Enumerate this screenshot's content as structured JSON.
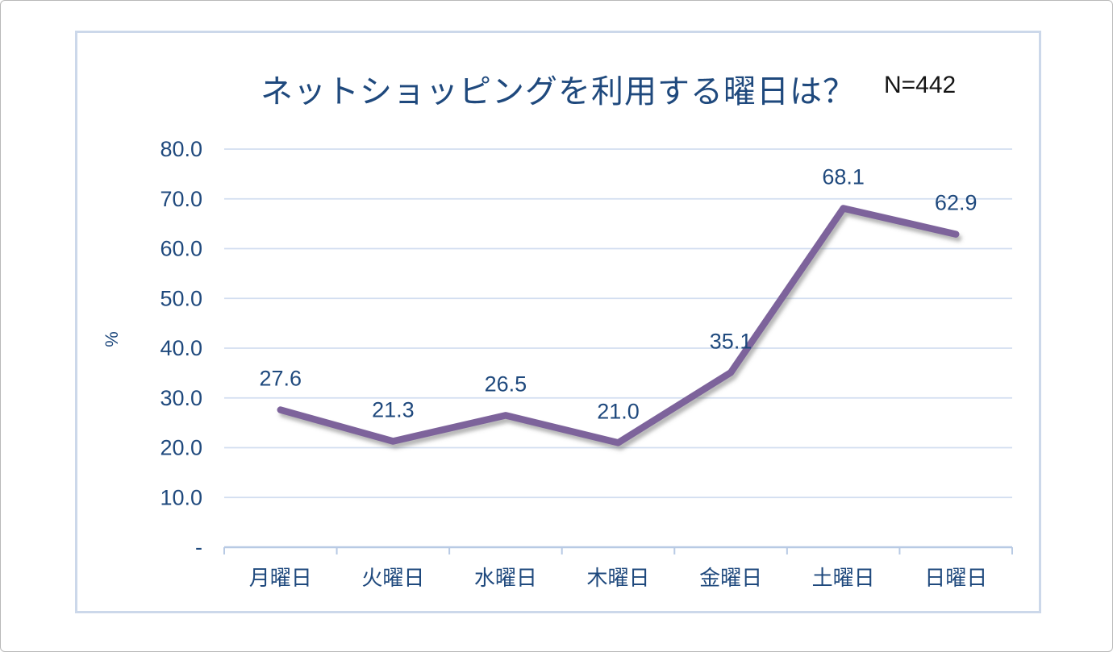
{
  "chart_data": {
    "type": "line",
    "title": "ネットショッピングを利用する曜日は？",
    "annotation": "N=442",
    "categories": [
      "月曜日",
      "火曜日",
      "水曜日",
      "木曜日",
      "金曜日",
      "土曜日",
      "日曜日"
    ],
    "values": [
      27.6,
      21.3,
      26.5,
      21.0,
      35.1,
      68.1,
      62.9
    ],
    "ylabel": "%",
    "xlabel": "",
    "ylim": [
      0,
      80
    ],
    "ytick_interval": 10,
    "ytick_labels": [
      "-",
      "10.0",
      "20.0",
      "30.0",
      "40.0",
      "50.0",
      "60.0",
      "70.0",
      "80.0"
    ],
    "grid": true,
    "legend": false,
    "colors": {
      "line": "#7D649B",
      "labels": "#1F497D",
      "gridline": "#D2DEF0",
      "axis": "#B8CAE4",
      "annotation": "#141414",
      "chart_border": "#ccd8ea"
    }
  }
}
